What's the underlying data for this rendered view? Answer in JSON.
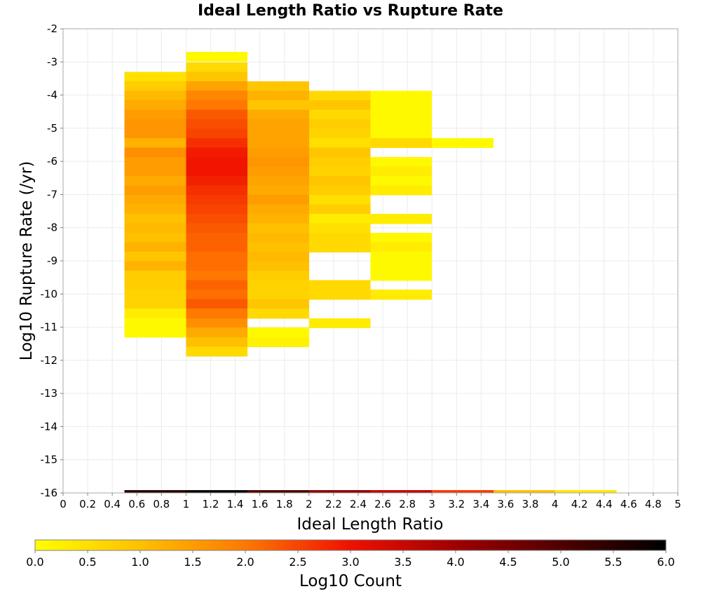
{
  "chart_data": {
    "type": "heatmap",
    "title": "Ideal Length Ratio vs Rupture Rate",
    "xlabel": "Ideal Length Ratio",
    "ylabel": "Log10 Rupture Rate (/yr)",
    "xlim": [
      0,
      5
    ],
    "ylim": [
      -16,
      -2
    ],
    "x_ticks": [
      "0",
      "0.2",
      "0.4",
      "0.6",
      "0.8",
      "1",
      "1.2",
      "1.4",
      "1.6",
      "1.8",
      "2",
      "2.2",
      "2.4",
      "2.6",
      "2.8",
      "3",
      "3.2",
      "3.4",
      "3.6",
      "3.8",
      "4",
      "4.2",
      "4.4",
      "4.6",
      "4.8",
      "5"
    ],
    "y_ticks": [
      "-2",
      "-3",
      "-4",
      "-5",
      "-6",
      "-7",
      "-8",
      "-9",
      "-10",
      "-11",
      "-12",
      "-13",
      "-14",
      "-15",
      "-16"
    ],
    "grid": true,
    "bin_width": 0.5,
    "row_height": 0.286,
    "colorbar": {
      "label": "Log10 Count",
      "range": [
        0,
        6
      ],
      "ticks": [
        "0.0",
        "0.5",
        "1.0",
        "1.5",
        "2.0",
        "2.5",
        "3.0",
        "3.5",
        "4.0",
        "4.5",
        "5.0",
        "5.5",
        "6.0"
      ],
      "stops": [
        "#ffff00",
        "#ffc000",
        "#ff7800",
        "#f01000",
        "#a00000",
        "#500000",
        "#000000"
      ]
    },
    "columns": [
      {
        "x": [
          0.5,
          1.0
        ],
        "cells": [
          {
            "y": -3.3,
            "v": 0.5
          },
          {
            "y": -3.586,
            "v": 0.8
          },
          {
            "y": -3.871,
            "v": 1.1
          },
          {
            "y": -4.157,
            "v": 1.3
          },
          {
            "y": -4.443,
            "v": 1.5
          },
          {
            "y": -4.729,
            "v": 1.6
          },
          {
            "y": -5.014,
            "v": 1.6
          },
          {
            "y": -5.3,
            "v": 1.2
          },
          {
            "y": -5.586,
            "v": 1.7
          },
          {
            "y": -5.871,
            "v": 1.5
          },
          {
            "y": -6.157,
            "v": 1.5
          },
          {
            "y": -6.443,
            "v": 1.3
          },
          {
            "y": -6.729,
            "v": 1.5
          },
          {
            "y": -7.014,
            "v": 1.3
          },
          {
            "y": -7.3,
            "v": 1.2
          },
          {
            "y": -7.586,
            "v": 1.0
          },
          {
            "y": -7.871,
            "v": 1.1
          },
          {
            "y": -8.157,
            "v": 1.0
          },
          {
            "y": -8.443,
            "v": 1.2
          },
          {
            "y": -8.729,
            "v": 0.9
          },
          {
            "y": -9.014,
            "v": 1.2
          },
          {
            "y": -9.3,
            "v": 0.8
          },
          {
            "y": -9.586,
            "v": 0.8
          },
          {
            "y": -9.871,
            "v": 0.7
          },
          {
            "y": -10.157,
            "v": 0.7
          },
          {
            "y": -10.443,
            "v": 0.3
          },
          {
            "y": -10.729,
            "v": 0.1
          },
          {
            "y": -11.014,
            "v": 0.1
          }
        ]
      },
      {
        "x": [
          1.0,
          1.5
        ],
        "cells": [
          {
            "y": -2.7,
            "v": 0.1
          },
          {
            "y": -3.014,
            "v": 0.6
          },
          {
            "y": -3.3,
            "v": 0.9
          },
          {
            "y": -3.586,
            "v": 1.4
          },
          {
            "y": -3.871,
            "v": 1.8
          },
          {
            "y": -4.157,
            "v": 2.0
          },
          {
            "y": -4.443,
            "v": 2.3
          },
          {
            "y": -4.729,
            "v": 2.4
          },
          {
            "y": -5.014,
            "v": 2.5
          },
          {
            "y": -5.3,
            "v": 2.7
          },
          {
            "y": -5.586,
            "v": 2.9
          },
          {
            "y": -5.871,
            "v": 2.95
          },
          {
            "y": -6.157,
            "v": 2.95
          },
          {
            "y": -6.443,
            "v": 2.85
          },
          {
            "y": -6.729,
            "v": 2.7
          },
          {
            "y": -7.014,
            "v": 2.6
          },
          {
            "y": -7.3,
            "v": 2.5
          },
          {
            "y": -7.586,
            "v": 2.4
          },
          {
            "y": -7.871,
            "v": 2.3
          },
          {
            "y": -8.157,
            "v": 2.2
          },
          {
            "y": -8.443,
            "v": 2.2
          },
          {
            "y": -8.729,
            "v": 2.1
          },
          {
            "y": -9.014,
            "v": 2.1
          },
          {
            "y": -9.3,
            "v": 2.0
          },
          {
            "y": -9.586,
            "v": 2.2
          },
          {
            "y": -9.871,
            "v": 2.1
          },
          {
            "y": -10.157,
            "v": 2.3
          },
          {
            "y": -10.443,
            "v": 2.0
          },
          {
            "y": -10.729,
            "v": 1.7
          },
          {
            "y": -11.014,
            "v": 1.3
          },
          {
            "y": -11.3,
            "v": 1.0
          },
          {
            "y": -11.586,
            "v": 0.6
          }
        ]
      },
      {
        "x": [
          1.5,
          2.0
        ],
        "cells": [
          {
            "y": -3.586,
            "v": 0.9
          },
          {
            "y": -3.871,
            "v": 1.2
          },
          {
            "y": -4.157,
            "v": 0.9
          },
          {
            "y": -4.443,
            "v": 1.3
          },
          {
            "y": -4.729,
            "v": 1.4
          },
          {
            "y": -5.014,
            "v": 1.4
          },
          {
            "y": -5.3,
            "v": 1.4
          },
          {
            "y": -5.586,
            "v": 1.5
          },
          {
            "y": -5.871,
            "v": 1.6
          },
          {
            "y": -6.157,
            "v": 1.5
          },
          {
            "y": -6.443,
            "v": 1.4
          },
          {
            "y": -6.729,
            "v": 1.3
          },
          {
            "y": -7.014,
            "v": 1.5
          },
          {
            "y": -7.3,
            "v": 1.3
          },
          {
            "y": -7.586,
            "v": 1.2
          },
          {
            "y": -7.871,
            "v": 1.0
          },
          {
            "y": -8.157,
            "v": 1.1
          },
          {
            "y": -8.443,
            "v": 1.0
          },
          {
            "y": -8.729,
            "v": 1.1
          },
          {
            "y": -9.014,
            "v": 1.0
          },
          {
            "y": -9.3,
            "v": 0.8
          },
          {
            "y": -9.586,
            "v": 0.7
          },
          {
            "y": -9.871,
            "v": 0.7
          },
          {
            "y": -10.157,
            "v": 0.9
          },
          {
            "y": -10.443,
            "v": 0.6
          },
          {
            "y": -11.014,
            "v": 0.1
          },
          {
            "y": -11.3,
            "v": 0.2
          }
        ]
      },
      {
        "x": [
          2.0,
          2.5
        ],
        "cells": [
          {
            "y": -3.871,
            "v": 0.6
          },
          {
            "y": -4.157,
            "v": 0.9
          },
          {
            "y": -4.443,
            "v": 0.6
          },
          {
            "y": -4.729,
            "v": 0.8
          },
          {
            "y": -5.014,
            "v": 0.7
          },
          {
            "y": -5.3,
            "v": 0.5
          },
          {
            "y": -5.586,
            "v": 0.9
          },
          {
            "y": -5.871,
            "v": 0.8
          },
          {
            "y": -6.157,
            "v": 0.7
          },
          {
            "y": -6.443,
            "v": 0.9
          },
          {
            "y": -6.729,
            "v": 0.8
          },
          {
            "y": -7.014,
            "v": 0.5
          },
          {
            "y": -7.3,
            "v": 0.8
          },
          {
            "y": -7.586,
            "v": 0.3
          },
          {
            "y": -7.871,
            "v": 0.5
          },
          {
            "y": -8.157,
            "v": 0.6
          },
          {
            "y": -8.443,
            "v": 0.6
          },
          {
            "y": -9.586,
            "v": 0.6
          },
          {
            "y": -9.871,
            "v": 0.6
          },
          {
            "y": -10.729,
            "v": 0.3
          }
        ]
      },
      {
        "x": [
          2.5,
          3.0
        ],
        "cells": [
          {
            "y": -3.871,
            "v": 0.1
          },
          {
            "y": -4.157,
            "v": 0.1
          },
          {
            "y": -4.443,
            "v": 0.1
          },
          {
            "y": -4.729,
            "v": 0.1
          },
          {
            "y": -5.014,
            "v": 0.1
          },
          {
            "y": -5.3,
            "v": 0.6
          },
          {
            "y": -5.871,
            "v": 0.1
          },
          {
            "y": -6.157,
            "v": 0.3
          },
          {
            "y": -6.443,
            "v": 0.1
          },
          {
            "y": -6.729,
            "v": 0.3
          },
          {
            "y": -7.586,
            "v": 0.3
          },
          {
            "y": -8.157,
            "v": 0.1
          },
          {
            "y": -8.443,
            "v": 0.3
          },
          {
            "y": -8.729,
            "v": 0.1
          },
          {
            "y": -9.014,
            "v": 0.1
          },
          {
            "y": -9.3,
            "v": 0.1
          },
          {
            "y": -9.871,
            "v": 0.3
          }
        ]
      },
      {
        "x": [
          3.0,
          3.5
        ],
        "cells": [
          {
            "y": -5.3,
            "v": 0.1
          }
        ]
      }
    ],
    "totals_row": {
      "y": -16,
      "cells": [
        {
          "x": [
            0.5,
            1.0
          ],
          "v": 5.5
        },
        {
          "x": [
            1.0,
            1.5
          ],
          "v": 5.9
        },
        {
          "x": [
            1.5,
            2.0
          ],
          "v": 5.0
        },
        {
          "x": [
            2.0,
            2.5
          ],
          "v": 4.2
        },
        {
          "x": [
            2.5,
            3.0
          ],
          "v": 3.6
        },
        {
          "x": [
            3.0,
            3.5
          ],
          "v": 2.6
        },
        {
          "x": [
            3.5,
            4.0
          ],
          "v": 1.0
        },
        {
          "x": [
            4.0,
            4.5
          ],
          "v": 0.4
        }
      ]
    }
  }
}
